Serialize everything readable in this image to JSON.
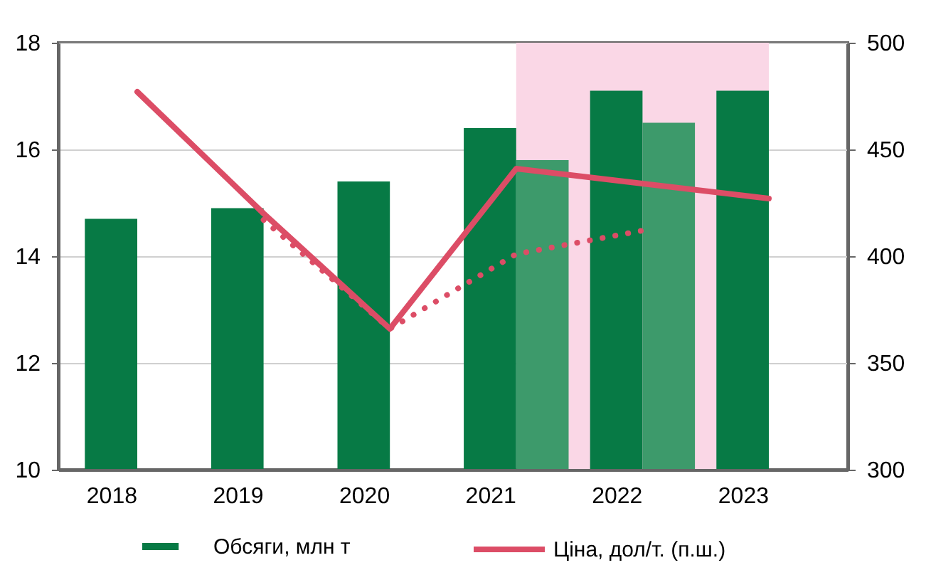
{
  "chart_data": {
    "type": "bar",
    "categories": [
      "2018",
      "2019",
      "2020",
      "2021",
      "2022",
      "2023"
    ],
    "series": [
      {
        "name": "Обсяги, млн т",
        "color": "#077a45",
        "values": [
          14.7,
          14.9,
          15.4,
          16.4,
          17.1,
          17.1
        ]
      },
      {
        "color": "#3d9a6b",
        "values": [
          null,
          null,
          null,
          15.8,
          16.5,
          null
        ]
      },
      {
        "name": "Ціна,  дол/т. (п.ш.)",
        "type": "line",
        "axis": "y2",
        "color": "#dc4d66",
        "values": [
          477,
          420,
          366,
          441,
          434,
          427
        ]
      },
      {
        "type": "line",
        "axis": "y2",
        "color": "#dc4d66",
        "line_style": "dotted",
        "values": [
          null,
          417,
          366,
          401,
          412,
          null
        ]
      }
    ],
    "ylim": [
      10,
      18
    ],
    "yticks": [
      10,
      12,
      14,
      16,
      18
    ],
    "y2lim": [
      300,
      500
    ],
    "y2ticks": [
      300,
      350,
      400,
      450,
      500
    ],
    "bands": [
      {
        "axis": "x",
        "from": "2021",
        "to": "2023",
        "color": "#fad7e6"
      }
    ],
    "grid": "y",
    "legend": "bottom",
    "marker": "none"
  }
}
